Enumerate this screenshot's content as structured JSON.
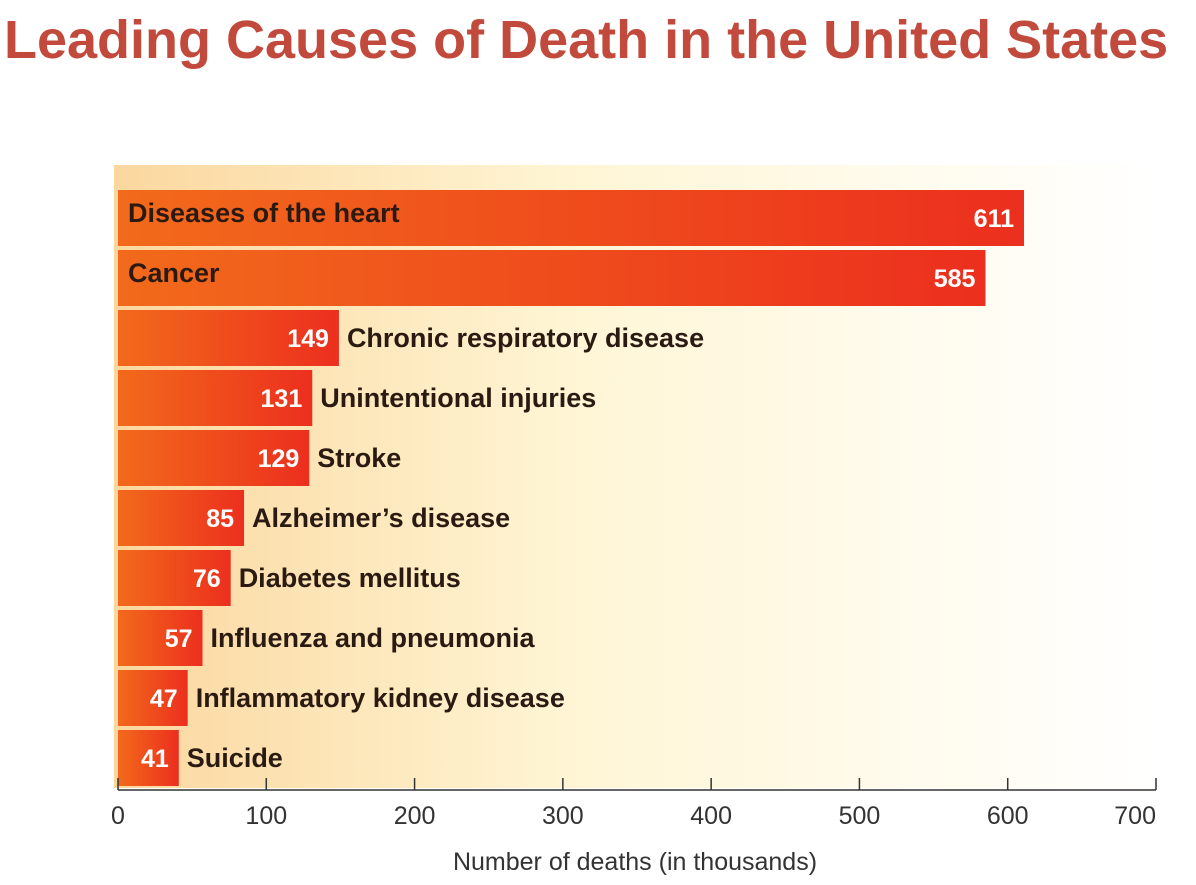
{
  "title": "Leading Causes of Death in the United States",
  "colors": {
    "title": "#c24a3c",
    "bar_start": "#f26a1b",
    "bar_end": "#ec2f1e",
    "plot_bg_left": "#fbd79e",
    "plot_bg_right": "#ffffff",
    "value_label": "#ffffff",
    "category_label": "#2a1a12"
  },
  "chart_data": {
    "type": "bar",
    "orientation": "horizontal",
    "categories": [
      "Diseases of the heart",
      "Cancer",
      "Chronic respiratory disease",
      "Unintentional injuries",
      "Stroke",
      "Alzheimer’s disease",
      "Diabetes mellitus",
      "Influenza and pneumonia",
      "Inflammatory kidney disease",
      "Suicide"
    ],
    "values": [
      611,
      585,
      149,
      131,
      129,
      85,
      76,
      57,
      47,
      41
    ],
    "value_labels": [
      "611",
      "585",
      "149",
      "131",
      "129",
      "85",
      "76",
      "57",
      "47",
      "41"
    ],
    "label_inside_bar": [
      true,
      true,
      false,
      false,
      false,
      false,
      false,
      false,
      false,
      false
    ],
    "xlabel": "Number of deaths (in thousands)",
    "xlim": [
      0,
      700
    ],
    "xticks": [
      0,
      100,
      200,
      300,
      400,
      500,
      600,
      700
    ],
    "xtick_labels": [
      "0",
      "100",
      "200",
      "300",
      "400",
      "500",
      "600",
      "700"
    ],
    "grid": false
  }
}
